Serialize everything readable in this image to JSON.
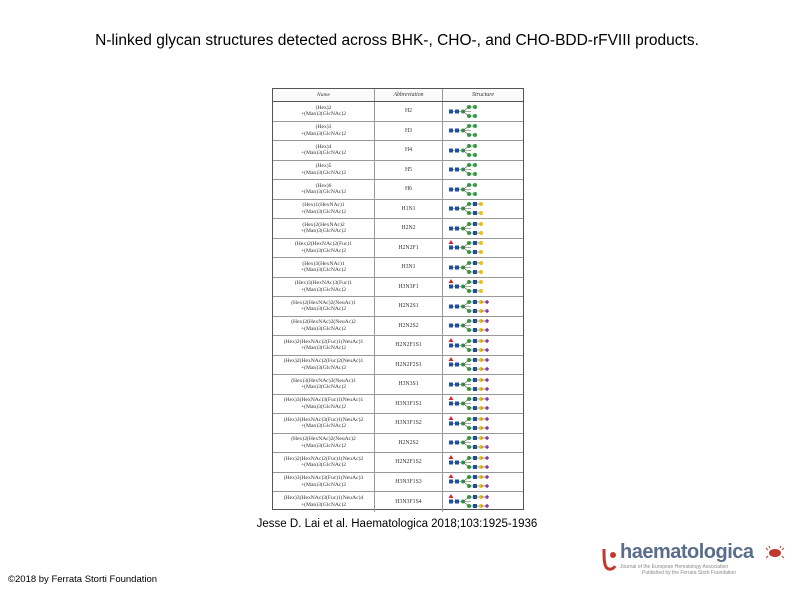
{
  "title": "N-linked glycan structures detected across BHK-, CHO-, and CHO-BDD-rFVIII products.",
  "citation": "Jesse D. Lai et al. Haematologica 2018;103:1925-1936",
  "copyright": "©2018 by Ferrata Storti Foundation",
  "logo": {
    "name": "haematologica",
    "line1": "Journal of the European Hematology Association",
    "line2": "Published by the Ferrata Storti Foundation"
  },
  "table": {
    "headers": [
      "Name",
      "Abbreviation",
      "Structure"
    ],
    "rows": [
      {
        "name1": "(Hex)2",
        "name2": "+(Man)3(GlcNAc)2",
        "abbr": "H2"
      },
      {
        "name1": "(Hex)3",
        "name2": "+(Man)3(GlcNAc)2",
        "abbr": "H3"
      },
      {
        "name1": "(Hex)4",
        "name2": "+(Man)3(GlcNAc)2",
        "abbr": "H4"
      },
      {
        "name1": "(Hex)5",
        "name2": "+(Man)3(GlcNAc)2",
        "abbr": "H5"
      },
      {
        "name1": "(Hex)6",
        "name2": "+(Man)3(GlcNAc)2",
        "abbr": "H6"
      },
      {
        "name1": "(Hex)1(HexNAc)1",
        "name2": "+(Man)3(GlcNAc)2",
        "abbr": "H1N1"
      },
      {
        "name1": "(Hex)2(HexNAc)2",
        "name2": "+(Man)3(GlcNAc)2",
        "abbr": "H2N2"
      },
      {
        "name1": "(Hex)2(HexNAc)2(Fuc)1",
        "name2": "+(Man)3(GlcNAc)2",
        "abbr": "H2N2F1"
      },
      {
        "name1": "(Hex)3(HexNAc)1",
        "name2": "+(Man)3(GlcNAc)2",
        "abbr": "H3N1"
      },
      {
        "name1": "(Hex)3(HexNAc)3(Fuc)1",
        "name2": "+(Man)3(GlcNAc)2",
        "abbr": "H3N3F1"
      },
      {
        "name1": "(Hex)2(HexNAc)2(NeuAc)1",
        "name2": "+(Man)3(GlcNAc)2",
        "abbr": "H2N2S1"
      },
      {
        "name1": "(Hex)2(HexNAc)2(NeuAc)2",
        "name2": "+(Man)3(GlcNAc)2",
        "abbr": "H2N2S2"
      },
      {
        "name1": "(Hex)2(HexNAc)2(Fuc)1(NeuAc)1",
        "name2": "+(Man)3(GlcNAc)2",
        "abbr": "H2N2F1S1"
      },
      {
        "name1": "(Hex)2(HexNAc)2(Fuc)2(NeuAc)1",
        "name2": "+(Man)3(GlcNAc)2",
        "abbr": "H2N2F2S1"
      },
      {
        "name1": "(Hex)3(HexNAc)3(NeuAc)1",
        "name2": "+(Man)3(GlcNAc)2",
        "abbr": "H3N3S1"
      },
      {
        "name1": "(Hex)3(HexNAc)3(Fuc)1(NeuAc)1",
        "name2": "+(Man)3(GlcNAc)2",
        "abbr": "H3N3F1S1"
      },
      {
        "name1": "(Hex)3(HexNAc)3(Fuc)1(NeuAc)2",
        "name2": "+(Man)3(GlcNAc)2",
        "abbr": "H3N3F1S2"
      },
      {
        "name1": "(Hex)2(HexNAc)2(NeuAc)2",
        "name2": "+(Man)3(GlcNAc)2",
        "abbr": "H2N2S2"
      },
      {
        "name1": "(Hex)2(HexNAc)2(Fuc)1(NeuAc)2",
        "name2": "+(Man)3(GlcNAc)2",
        "abbr": "H2N2F1S2"
      },
      {
        "name1": "(Hex)3(HexNAc)3(Fuc)1(NeuAc)3",
        "name2": "+(Man)3(GlcNAc)2",
        "abbr": "H3N3F1S3"
      },
      {
        "name1": "(Hex)3(HexNAc)3(Fuc)1(NeuAc)4",
        "name2": "+(Man)3(GlcNAc)2",
        "abbr": "H3N3F1S4"
      }
    ]
  }
}
